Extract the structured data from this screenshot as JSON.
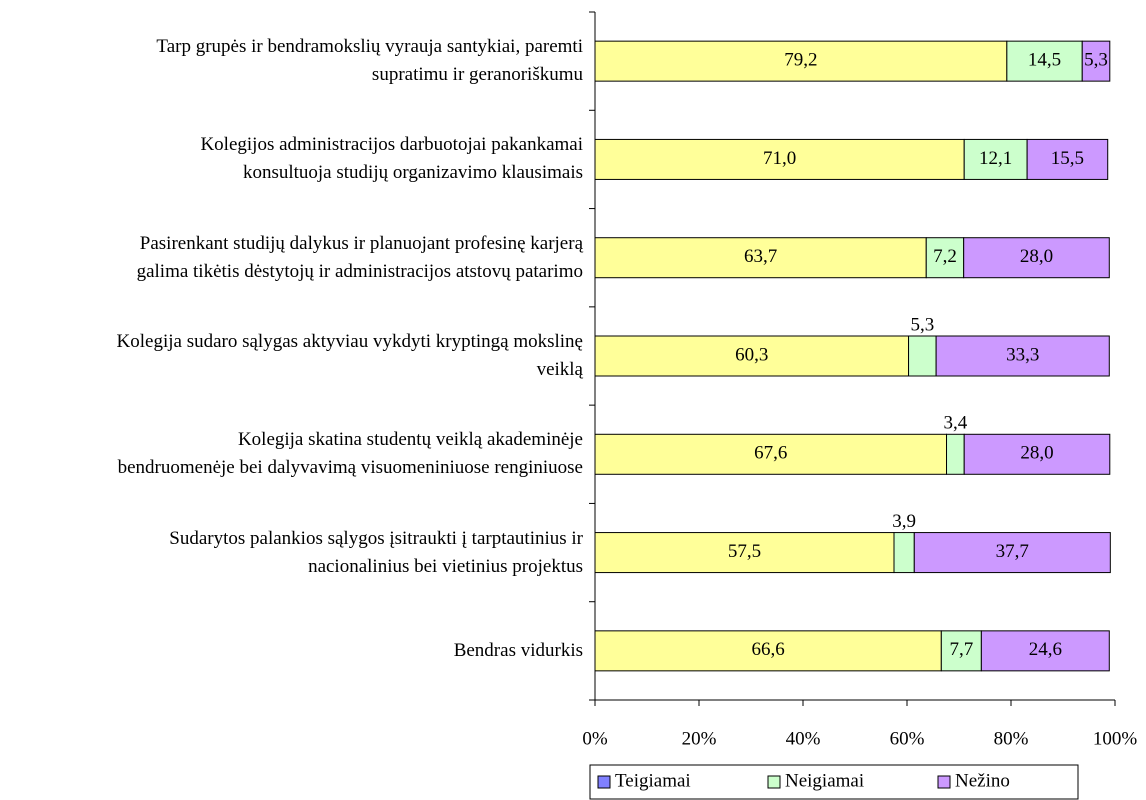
{
  "chart_data": {
    "type": "stacked_barh",
    "categories": [
      "Tarp grupės ir bendramokslių vyrauja santykiai, paremti\nsupratimu ir geranoriškumu",
      "Kolegijos administracijos darbuotojai pakankamai\nkonsultuoja studijų organizavimo klausimais",
      "Pasirenkant studijų dalykus ir planuojant profesinę karjerą\ngalima tikėtis dėstytojų ir administracijos atstovų patarimo",
      "Kolegija sudaro sąlygas aktyviau vykdyti kryptingą mokslinę\nveiklą",
      "Kolegija skatina studentų veiklą akademinėje\nbendruomenėje bei dalyvavimą visuomeniniuose renginiuose",
      "Sudarytos palankios sąlygos įsitraukti į tarptautinius ir\nnacionalinius bei vietinius projektus",
      "Bendras vidurkis"
    ],
    "series": [
      {
        "name": "Teigiamai",
        "color": "#ffff99",
        "legend_color": "#8080ff",
        "values": [
          79.2,
          71.0,
          63.7,
          60.3,
          67.6,
          57.5,
          66.6
        ],
        "value_labels": [
          "79,2",
          "71,0",
          "63,7",
          "60,3",
          "67,6",
          "57,5",
          "66,6"
        ]
      },
      {
        "name": "Neigiamai",
        "color": "#ccffcc",
        "legend_color": "#ccffcc",
        "values": [
          14.5,
          12.1,
          7.2,
          5.3,
          3.4,
          3.9,
          7.7
        ],
        "value_labels": [
          "14,5",
          "12,1",
          "7,2",
          "5,3",
          "3,4",
          "3,9",
          "7,7"
        ]
      },
      {
        "name": "Nežino",
        "color": "#cc99ff",
        "legend_color": "#cc99ff",
        "values": [
          5.3,
          15.5,
          28.0,
          33.3,
          28.0,
          37.7,
          24.6
        ],
        "value_labels": [
          "5,3",
          "15,5",
          "28,0",
          "33,3",
          "28,0",
          "37,7",
          "24,6"
        ]
      }
    ],
    "xlim": [
      0,
      100
    ],
    "xticks": [
      {
        "value": 0,
        "label": "0%"
      },
      {
        "value": 20,
        "label": "20%"
      },
      {
        "value": 40,
        "label": "40%"
      },
      {
        "value": 60,
        "label": "60%"
      },
      {
        "value": 80,
        "label": "80%"
      },
      {
        "value": 100,
        "label": "100%"
      }
    ],
    "legend": "bottom"
  }
}
